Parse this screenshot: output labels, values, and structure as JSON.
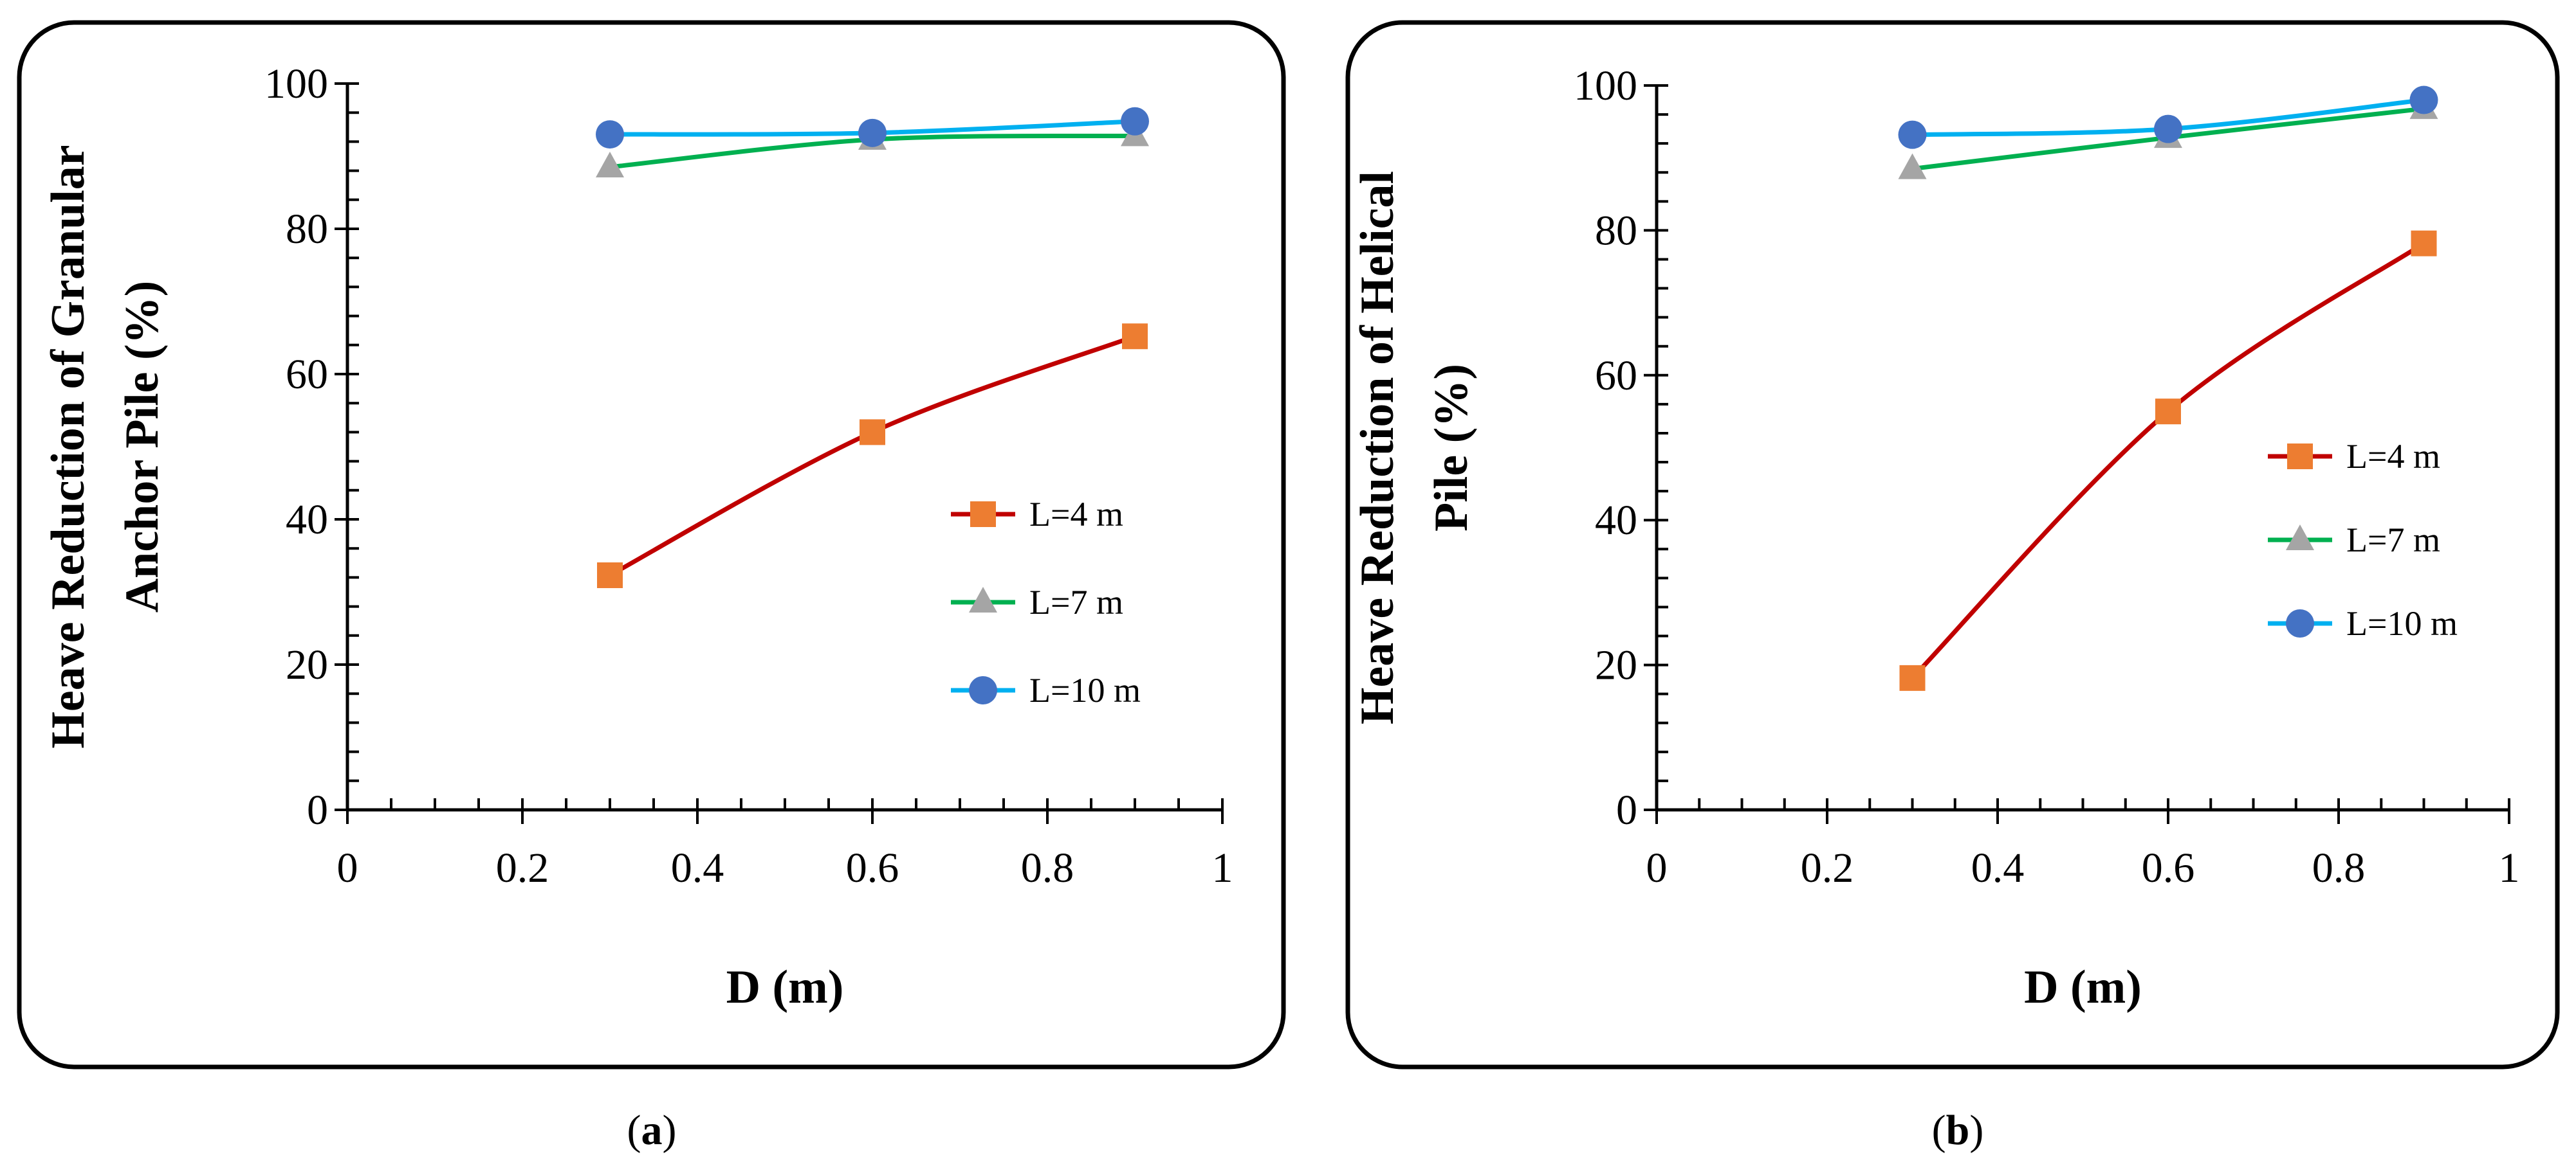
{
  "figure": {
    "captions": [
      {
        "open": "(",
        "letter": "a",
        "close": ")"
      },
      {
        "open": "(",
        "letter": "b",
        "close": ")"
      }
    ]
  },
  "chart_data": [
    {
      "type": "line",
      "title": "",
      "xlabel": "D (m)",
      "ylabel_lines": [
        "Heave Reduction of Granular",
        "Anchor Pile (%)"
      ],
      "xlim": [
        0,
        1
      ],
      "ylim": [
        0,
        100
      ],
      "x_ticks": [
        0,
        0.2,
        0.4,
        0.6,
        0.8,
        1
      ],
      "x_tick_labels": [
        "0",
        "0.2",
        "0.4",
        "0.6",
        "0.8",
        "1"
      ],
      "y_ticks": [
        0,
        20,
        40,
        60,
        80,
        100
      ],
      "y_tick_labels": [
        "0",
        "20",
        "40",
        "60",
        "80",
        "100"
      ],
      "minor_x_step": 0.05,
      "minor_y_step": 4,
      "grid": false,
      "legend_position": "right-middle",
      "x": [
        0.3,
        0.6,
        0.9
      ],
      "series": [
        {
          "name": "L=4 m",
          "values": [
            32.3,
            52,
            65.2
          ],
          "line_color": "#c00000",
          "marker": "square",
          "marker_color": "#ed7d31"
        },
        {
          "name": "L=7 m",
          "values": [
            88.5,
            92.3,
            92.8
          ],
          "line_color": "#00b050",
          "marker": "triangle",
          "marker_color": "#a5a5a5"
        },
        {
          "name": "L=10 m",
          "values": [
            93,
            93.2,
            94.8
          ],
          "line_color": "#00b0f0",
          "marker": "circle",
          "marker_color": "#4472c4"
        }
      ]
    },
    {
      "type": "line",
      "title": "",
      "xlabel": "D (m)",
      "ylabel_lines": [
        "Heave Reduction of Helical",
        "Pile (%)"
      ],
      "xlim": [
        0,
        1
      ],
      "ylim": [
        0,
        100
      ],
      "x_ticks": [
        0,
        0.2,
        0.4,
        0.6,
        0.8,
        1
      ],
      "x_tick_labels": [
        "0",
        "0.2",
        "0.4",
        "0.6",
        "0.8",
        "1"
      ],
      "y_ticks": [
        0,
        20,
        40,
        60,
        80,
        100
      ],
      "y_tick_labels": [
        "0",
        "20",
        "40",
        "60",
        "80",
        "100"
      ],
      "minor_x_step": 0.05,
      "minor_y_step": 4,
      "grid": false,
      "legend_position": "right-middle",
      "x": [
        0.3,
        0.6,
        0.9
      ],
      "series": [
        {
          "name": "L=4 m",
          "values": [
            18.2,
            55,
            78.2
          ],
          "line_color": "#c00000",
          "marker": "square",
          "marker_color": "#ed7d31"
        },
        {
          "name": "L=7 m",
          "values": [
            88.5,
            92.8,
            96.8
          ],
          "line_color": "#00b050",
          "marker": "triangle",
          "marker_color": "#a5a5a5"
        },
        {
          "name": "L=10 m",
          "values": [
            93.2,
            94,
            98
          ],
          "line_color": "#00b0f0",
          "marker": "circle",
          "marker_color": "#4472c4"
        }
      ]
    }
  ]
}
